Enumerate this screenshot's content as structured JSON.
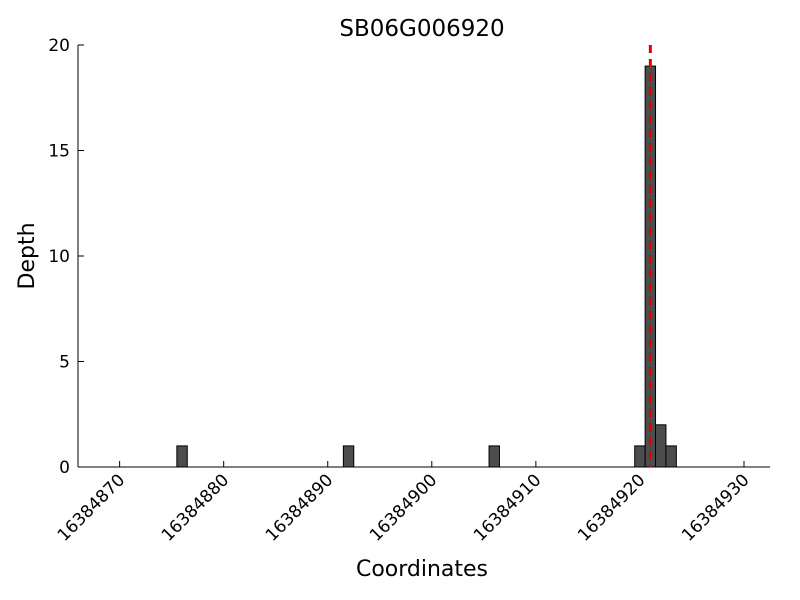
{
  "chart_data": {
    "type": "bar",
    "title": "SB06G006920",
    "x_label": "Coordinates",
    "y_label": "Depth",
    "x": [
      16384876,
      16384892,
      16384906,
      16384920,
      16384921,
      16384922,
      16384923
    ],
    "values": [
      1,
      1,
      1,
      1,
      19,
      2,
      1
    ],
    "color": "#4d4d4d",
    "xlim": [
      16384866,
      16384932.5
    ],
    "xticks": [
      16384870,
      16384880,
      16384890,
      16384900,
      16384910,
      16384920,
      16384930
    ],
    "ylim": [
      0,
      20
    ],
    "yticks": [
      0,
      5,
      10,
      15,
      20
    ],
    "grid": false,
    "reference_line": {
      "x": 16384921,
      "color": "#e00000"
    }
  }
}
